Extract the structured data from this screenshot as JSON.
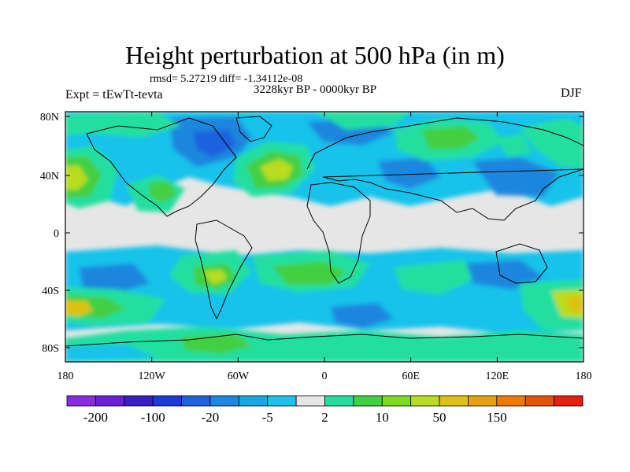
{
  "title": "Height perturbation at 500 hPa (in m)",
  "stats": "rmsd= 5.27219 diff= -1.34112e-08",
  "period": "3228kyr BP - 0000kyr BP",
  "experiment": "Expt = tEwTt-tevta",
  "season": "DJF",
  "lat_ticks": [
    "80N",
    "40N",
    "0",
    "40S",
    "80S"
  ],
  "lon_ticks": [
    "180",
    "120W",
    "60W",
    "0",
    "60E",
    "120E",
    "180"
  ],
  "colorbar": {
    "colors": [
      "#8a2be2",
      "#6a1fd8",
      "#3c1ec8",
      "#1d39d9",
      "#1f62de",
      "#1e86de",
      "#19a8e3",
      "#19c3ea",
      "#e6e6e6",
      "#21dfa0",
      "#43cf43",
      "#7bdc21",
      "#b9dd1c",
      "#ddc20e",
      "#e8a209",
      "#ec7a07",
      "#e8500c",
      "#e81f10"
    ],
    "labels": [
      "-200",
      "-100",
      "-20",
      "-5",
      "2",
      "10",
      "50",
      "150"
    ]
  }
}
